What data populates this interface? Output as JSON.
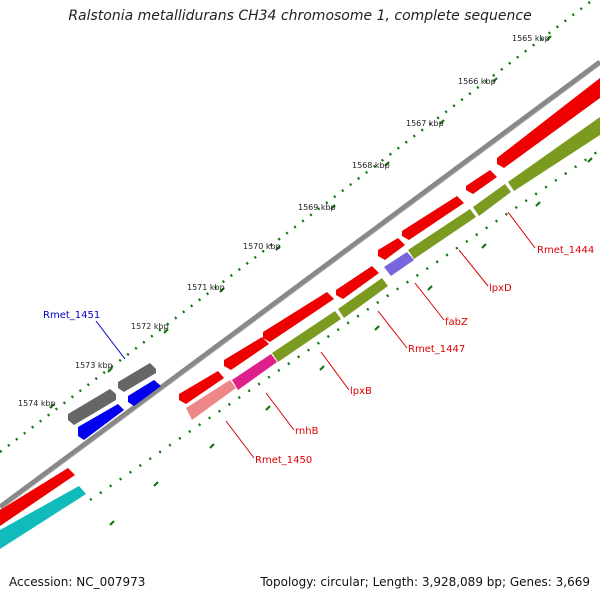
{
  "title": "Ralstonia metallidurans CH34 chromosome 1, complete sequence",
  "footer": {
    "accession": "Accession: NC_007973",
    "stats": "Topology: circular; Length: 3,928,089 bp; Genes: 3,669"
  },
  "kbp_labels": [
    "1565 kbp",
    "1566 kbp",
    "1567 kbp",
    "1568 kbp",
    "1569 kbp",
    "1570 kbp",
    "1571 kbp",
    "1572 kbp",
    "1573 kbp",
    "1574 kbp"
  ],
  "gene_labels": [
    {
      "name": "Rmet_1444",
      "color": "#dd0000"
    },
    {
      "name": "lpxD",
      "color": "#dd0000"
    },
    {
      "name": "fabZ",
      "color": "#dd0000"
    },
    {
      "name": "Rmet_1447",
      "color": "#dd0000"
    },
    {
      "name": "lpxB",
      "color": "#dd0000"
    },
    {
      "name": "rnhB",
      "color": "#dd0000"
    },
    {
      "name": "Rmet_1450",
      "color": "#dd0000"
    },
    {
      "name": "Rmet_1451",
      "color": "#0000cc"
    }
  ],
  "colors": {
    "cds": "#ee0000",
    "cog_olive": "#7a9a20",
    "pink": "#e0208a",
    "salmon": "#ee8888",
    "purple": "#7766dd",
    "blue": "#0000ee",
    "gray": "#666666",
    "cyan": "#11bbbb",
    "backbone": "#888888",
    "tick": "#117711"
  }
}
